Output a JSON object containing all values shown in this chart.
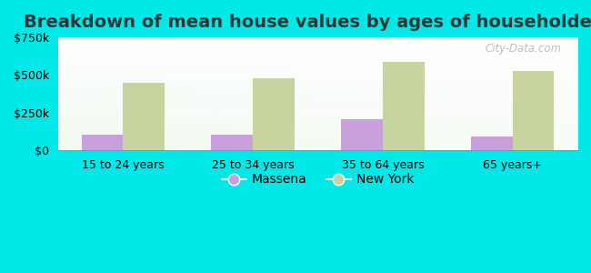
{
  "title": "Breakdown of mean house values by ages of householders",
  "categories": [
    "15 to 24 years",
    "25 to 34 years",
    "35 to 64 years",
    "65 years+"
  ],
  "massena_values": [
    105000,
    100000,
    205000,
    90000
  ],
  "newyork_values": [
    450000,
    478000,
    590000,
    525000
  ],
  "massena_color": "#c9a0dc",
  "newyork_color": "#c8d4a0",
  "background_color": "#00e8e8",
  "ylim": [
    0,
    750000
  ],
  "yticks": [
    0,
    250000,
    500000,
    750000
  ],
  "bar_width": 0.32,
  "title_fontsize": 14,
  "tick_fontsize": 9,
  "legend_fontsize": 10,
  "watermark": "City-Data.com"
}
